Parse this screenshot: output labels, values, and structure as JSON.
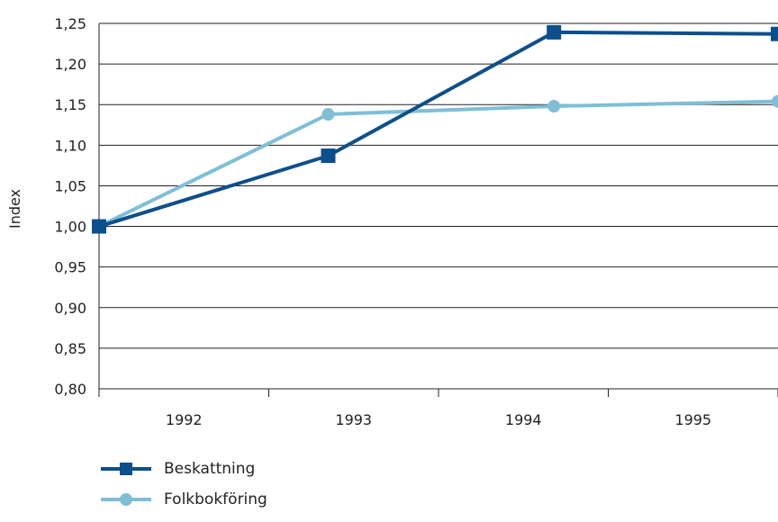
{
  "chart_data": {
    "type": "line",
    "title": "",
    "xlabel": "",
    "ylabel": "Index",
    "categories": [
      "1992",
      "1993",
      "1994",
      "1995"
    ],
    "ylim": [
      0.8,
      1.25
    ],
    "yticks": [
      "0,80",
      "0,85",
      "0,90",
      "0,95",
      "1,00",
      "1,05",
      "1,10",
      "1,15",
      "1,20",
      "1,25"
    ],
    "grid": "horizontal",
    "legend_position": "bottom-left",
    "series": [
      {
        "name": "Beskattning",
        "color": "#0d4f8b",
        "marker": "square",
        "points": [
          {
            "x": 0.0,
            "y": 1.0
          },
          {
            "x": 1.35,
            "y": 1.087
          },
          {
            "x": 2.68,
            "y": 1.239
          },
          {
            "x": 4.0,
            "y": 1.237
          }
        ]
      },
      {
        "name": "Folkbokföring",
        "color": "#7ebfd6",
        "marker": "circle",
        "points": [
          {
            "x": 0.0,
            "y": 1.0
          },
          {
            "x": 1.35,
            "y": 1.138
          },
          {
            "x": 2.68,
            "y": 1.148
          },
          {
            "x": 4.0,
            "y": 1.154
          }
        ]
      }
    ]
  }
}
